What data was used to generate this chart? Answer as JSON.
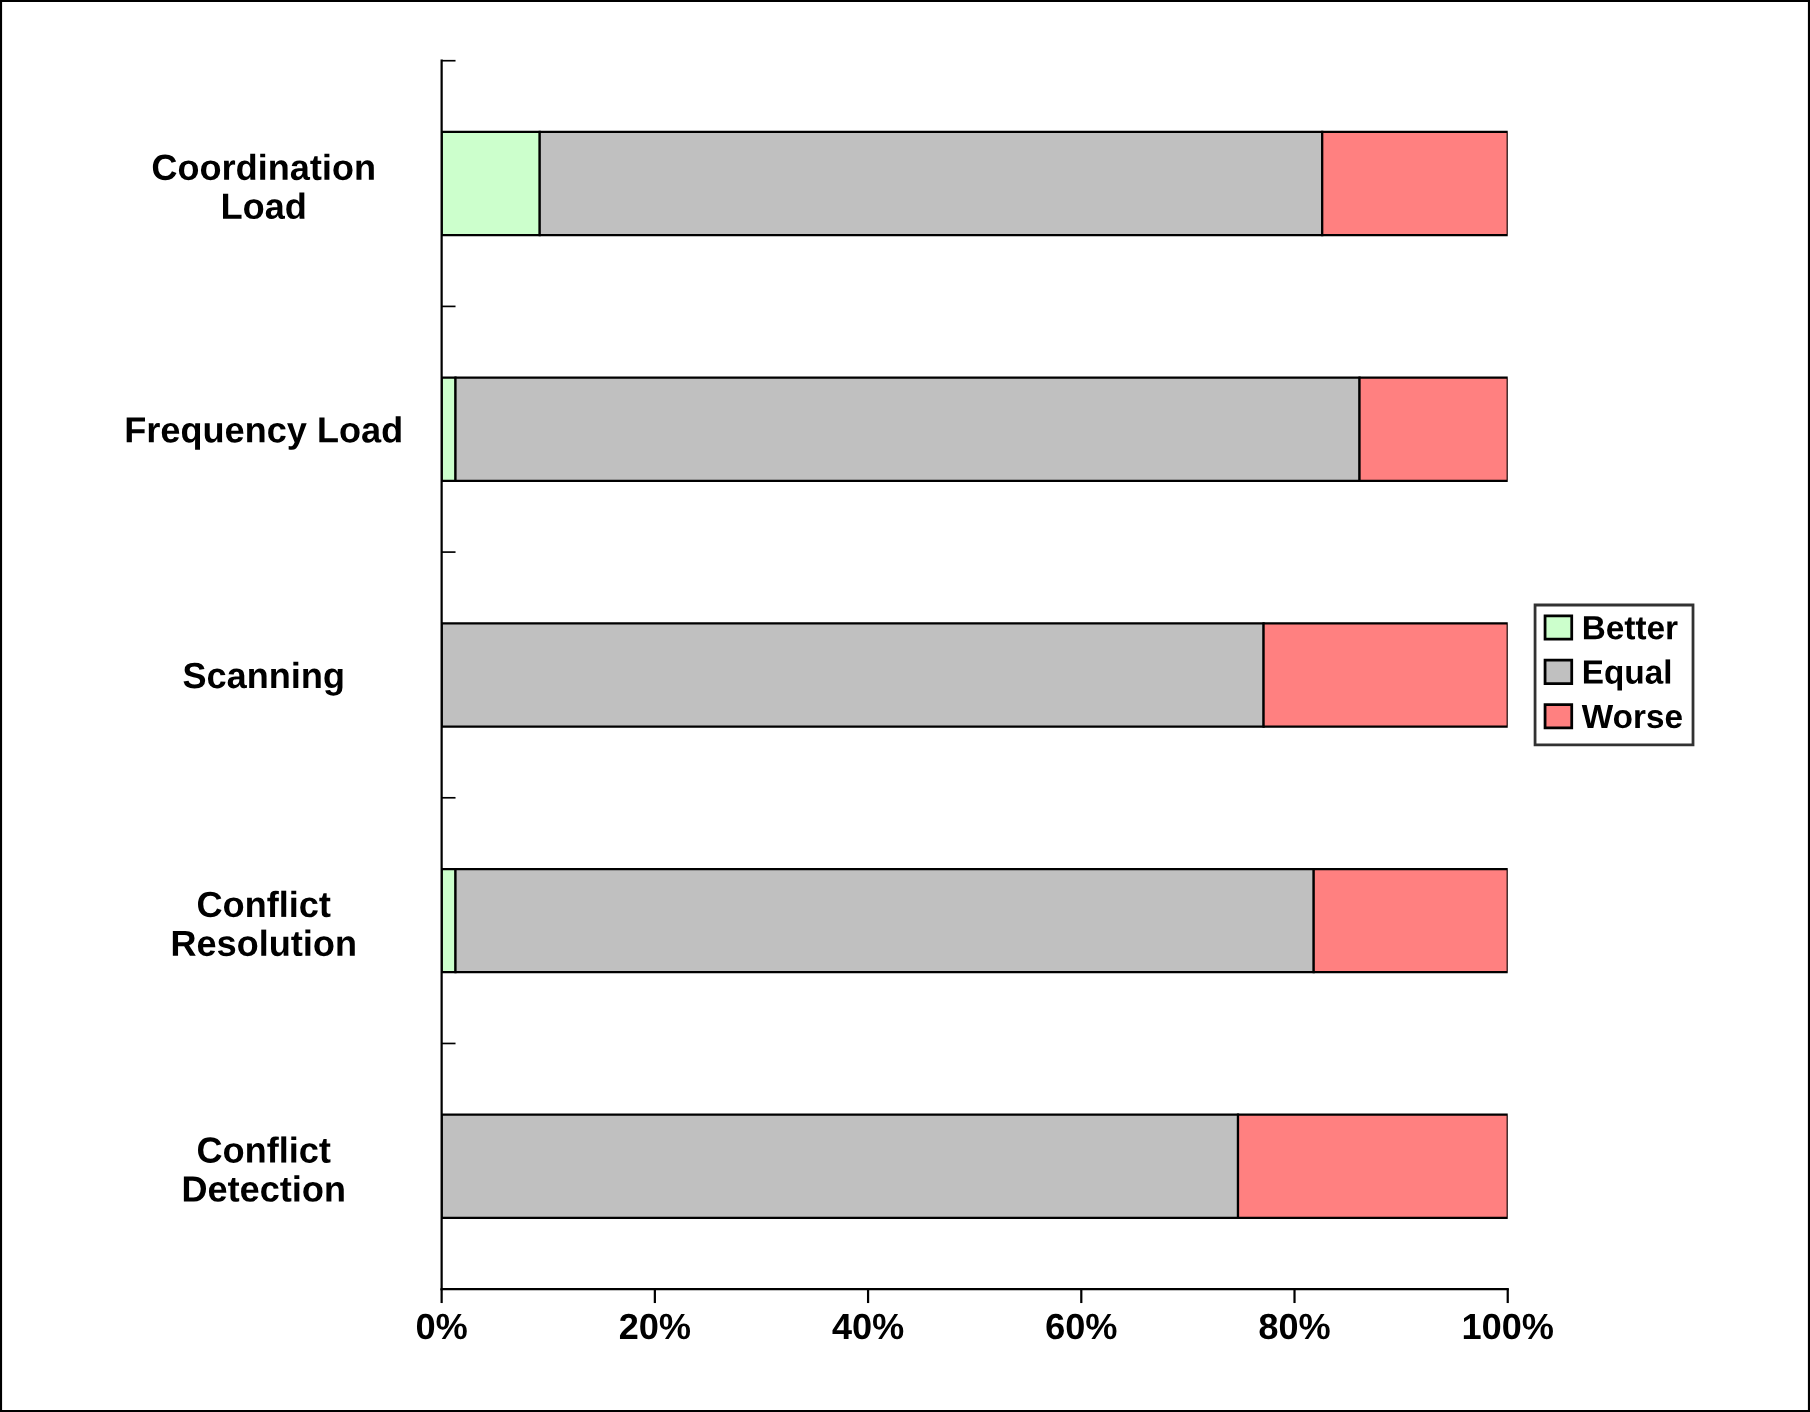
{
  "chart_data": {
    "type": "bar",
    "orientation": "horizontal",
    "stacked": true,
    "categories": [
      "Coordination\nLoad",
      "Frequency Load",
      "Scanning",
      "Conflict\nResolution",
      "Conflict\nDetection"
    ],
    "series": [
      {
        "name": "Better",
        "color": "#ccffcc",
        "values": [
          9.2,
          1.3,
          0,
          1.3,
          0
        ]
      },
      {
        "name": "Equal",
        "color": "#c0c0c0",
        "values": [
          73.4,
          84.8,
          77.1,
          80.5,
          74.7
        ]
      },
      {
        "name": "Worse",
        "color": "#ff8080",
        "values": [
          17.4,
          13.9,
          22.9,
          18.2,
          25.3
        ]
      }
    ],
    "xlim": [
      0,
      100
    ],
    "xticks": [
      {
        "value": 0,
        "label": "0%"
      },
      {
        "value": 20,
        "label": "20%"
      },
      {
        "value": 40,
        "label": "40%"
      },
      {
        "value": 60,
        "label": "60%"
      },
      {
        "value": 80,
        "label": "80%"
      },
      {
        "value": 100,
        "label": "100%"
      }
    ],
    "legend": "right",
    "grid": false
  }
}
